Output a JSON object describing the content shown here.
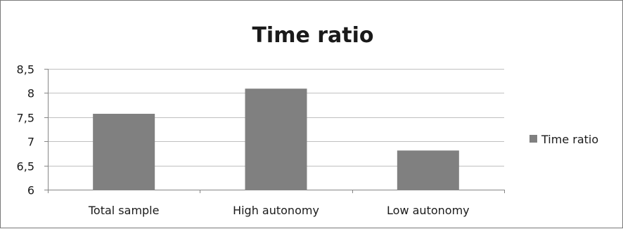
{
  "chart_data": {
    "type": "bar",
    "title": "Time ratio",
    "xlabel": "",
    "ylabel": "",
    "categories": [
      "Total sample",
      "High autonomy",
      "Low autonomy"
    ],
    "series": [
      {
        "name": "Time ratio",
        "values": [
          7.57,
          8.09,
          6.81
        ],
        "color": "#808080"
      }
    ],
    "ylim": [
      6,
      8.5
    ],
    "yticks": [
      6,
      6.5,
      7,
      7.5,
      8,
      8.5
    ],
    "ytick_labels": [
      "6",
      "6,5",
      "7",
      "7,5",
      "8",
      "8,5"
    ],
    "grid": true,
    "legend_position": "right",
    "colors": {
      "bar": "#808080",
      "grid": "#c0c0c0",
      "axis": "#868686",
      "border": "#7a7a7a"
    }
  }
}
